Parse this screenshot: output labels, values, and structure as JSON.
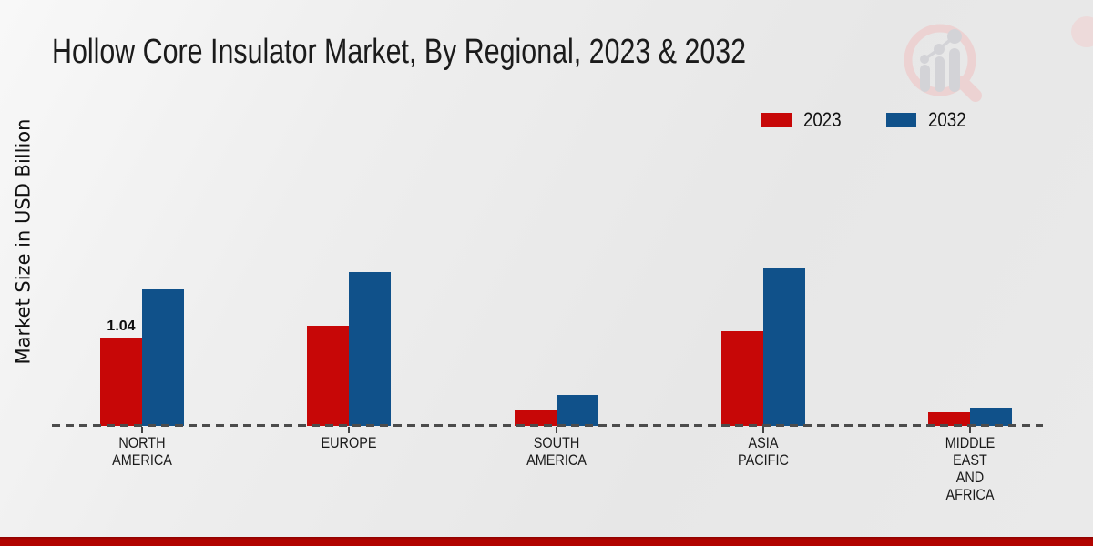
{
  "title": "Hollow Core Insulator Market, By Regional, 2023 & 2032",
  "y_axis_label": "Market Size in USD Billion",
  "legend": [
    {
      "label": "2023",
      "color": "#c70707"
    },
    {
      "label": "2032",
      "color": "#10518a"
    }
  ],
  "colors": {
    "series_2023": "#c70707",
    "series_2032": "#10518a",
    "footer_bar": "#b20400",
    "baseline": "#4c4c4c",
    "background": "#eaeaea"
  },
  "chart_data": {
    "type": "bar",
    "title": "Hollow Core Insulator Market, By Regional, 2023 & 2032",
    "xlabel": "",
    "ylabel": "Market Size in USD Billion",
    "categories": [
      "NORTH AMERICA",
      "EUROPE",
      "SOUTH AMERICA",
      "ASIA PACIFIC",
      "MIDDLE EAST AND AFRICA"
    ],
    "category_label_lines": [
      [
        "NORTH",
        "AMERICA"
      ],
      [
        "EUROPE"
      ],
      [
        "SOUTH",
        "AMERICA"
      ],
      [
        "ASIA",
        "PACIFIC"
      ],
      [
        "MIDDLE",
        "EAST",
        "AND",
        "AFRICA"
      ]
    ],
    "series": [
      {
        "name": "2023",
        "color": "#c70707",
        "values": [
          1.04,
          1.18,
          0.19,
          1.12,
          0.16
        ]
      },
      {
        "name": "2032",
        "color": "#10518a",
        "values": [
          1.61,
          1.81,
          0.36,
          1.86,
          0.21
        ]
      }
    ],
    "value_labels": [
      [
        "1.04",
        null,
        null,
        null,
        null
      ],
      [
        null,
        null,
        null,
        null,
        null
      ]
    ],
    "ylim": [
      0,
      2.0
    ],
    "grid": false,
    "legend_position": "top-right",
    "baseline_style": "dashed",
    "unit": "USD Billion"
  },
  "watermark": {
    "description": "faded magnifying-glass bar-chart logo"
  }
}
